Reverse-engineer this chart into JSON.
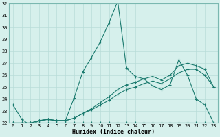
{
  "xlabel": "Humidex (Indice chaleur)",
  "ylabel": "",
  "x": [
    0,
    1,
    2,
    3,
    4,
    5,
    6,
    7,
    8,
    9,
    10,
    11,
    12,
    13,
    14,
    15,
    16,
    17,
    18,
    19,
    20,
    21,
    22,
    23
  ],
  "series": [
    [
      23.5,
      22.3,
      21.8,
      22.2,
      22.3,
      22.2,
      22.2,
      24.1,
      26.3,
      27.5,
      28.8,
      30.4,
      32.2,
      26.6,
      25.9,
      25.7,
      25.1,
      24.8,
      25.2,
      27.3,
      26.0,
      24.0,
      23.5,
      22.0
    ],
    [
      22.0,
      22.0,
      22.0,
      22.2,
      22.3,
      22.2,
      22.2,
      22.4,
      22.8,
      23.2,
      23.7,
      24.2,
      24.8,
      25.2,
      25.4,
      25.7,
      25.9,
      25.6,
      26.0,
      26.8,
      27.0,
      26.8,
      26.5,
      25.0
    ],
    [
      22.0,
      22.0,
      22.0,
      22.2,
      22.3,
      22.2,
      22.2,
      22.4,
      22.8,
      23.1,
      23.5,
      23.9,
      24.4,
      24.8,
      25.0,
      25.3,
      25.5,
      25.3,
      25.7,
      26.2,
      26.5,
      26.5,
      26.0,
      25.0
    ],
    [
      22.0,
      22.0,
      22.0,
      22.0,
      22.0,
      22.0,
      22.0,
      22.0,
      22.0,
      22.0,
      22.0,
      22.0,
      22.0,
      22.0,
      22.0,
      22.0,
      22.0,
      22.0,
      22.0,
      22.0,
      22.0,
      22.0,
      22.0,
      22.0
    ]
  ],
  "line_color": "#1a7a6e",
  "bg_color": "#d6f0ec",
  "grid_color": "#b8ddd8",
  "ylim": [
    22,
    32
  ],
  "xlim": [
    -0.5,
    23.5
  ],
  "yticks": [
    22,
    23,
    24,
    25,
    26,
    27,
    28,
    29,
    30,
    31,
    32
  ],
  "xticks": [
    0,
    1,
    2,
    3,
    4,
    5,
    6,
    7,
    8,
    9,
    10,
    11,
    12,
    13,
    14,
    15,
    16,
    17,
    18,
    19,
    20,
    21,
    22,
    23
  ],
  "marker": "+",
  "markersize": 3,
  "linewidth": 0.8,
  "tick_fontsize": 5,
  "xlabel_fontsize": 6
}
